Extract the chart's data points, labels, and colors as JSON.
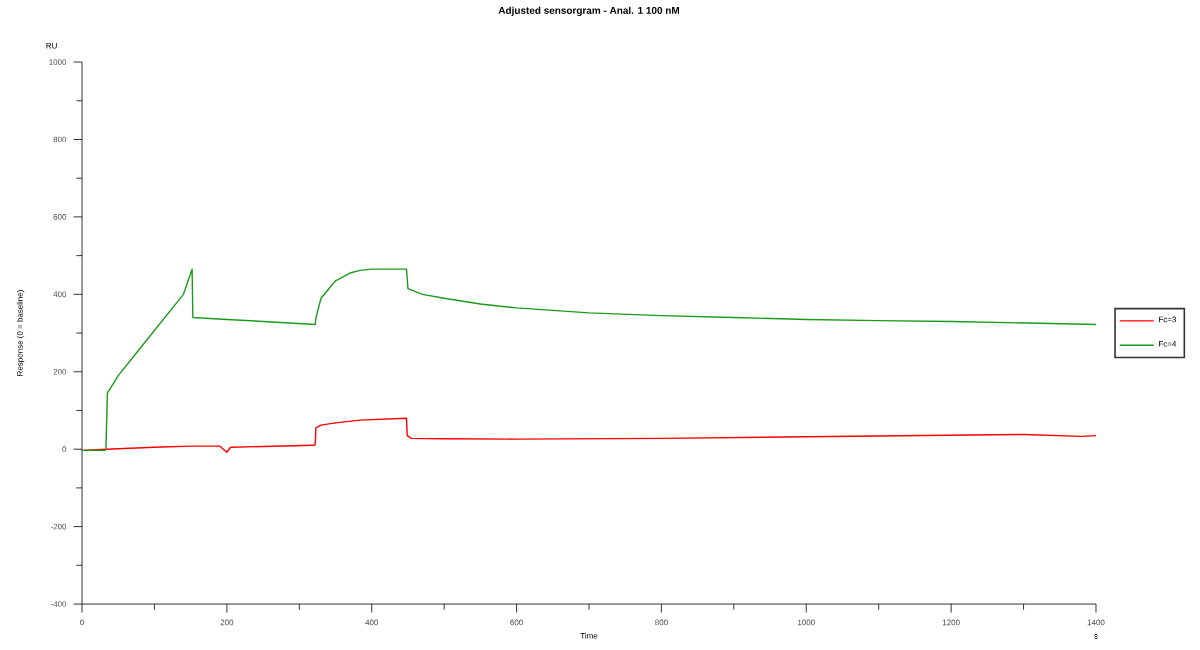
{
  "chart_data": {
    "type": "line",
    "title": "Adjusted sensorgram - Anal. 1  100 nM",
    "xlabel": "Time",
    "ylabel": "Response (0 = baseline)",
    "annotations": [
      "RU",
      "s"
    ],
    "xlim": [
      0,
      1400
    ],
    "xticks": [
      0,
      200,
      400,
      600,
      800,
      1000,
      1200,
      1400
    ],
    "ylim": [
      -400,
      1000
    ],
    "yticks": [
      -400,
      -200,
      0,
      200,
      400,
      600,
      800,
      1000
    ],
    "grid": false,
    "legend": "right",
    "marker": "none",
    "line_style": "solid",
    "series": [
      {
        "name": "Fc=3",
        "color": "#ff0000",
        "x": [
          0,
          33,
          100,
          150,
          190,
          200,
          205,
          250,
          320,
          322,
          323,
          330,
          350,
          384,
          448,
          449,
          455,
          500,
          600,
          800,
          1000,
          1200,
          1300,
          1380,
          1400
        ],
        "values": [
          -3,
          0,
          5,
          8,
          8,
          -8,
          5,
          7,
          10,
          12,
          55,
          62,
          68,
          75,
          80,
          35,
          28,
          27,
          26,
          28,
          32,
          36,
          38,
          33,
          35
        ]
      },
      {
        "name": "Fc=4",
        "color": "#1a9a1a",
        "x": [
          0,
          32,
          33,
          35,
          50,
          80,
          110,
          140,
          152,
          153,
          200,
          250,
          322,
          323,
          330,
          350,
          370,
          384,
          400,
          448,
          450,
          470,
          500,
          550,
          600,
          700,
          800,
          900,
          1000,
          1100,
          1200,
          1300,
          1400
        ],
        "values": [
          -3,
          -3,
          0,
          145,
          190,
          260,
          330,
          400,
          465,
          340,
          335,
          330,
          322,
          340,
          390,
          435,
          455,
          462,
          465,
          465,
          415,
          400,
          390,
          375,
          365,
          352,
          345,
          340,
          335,
          332,
          330,
          326,
          322
        ]
      }
    ]
  }
}
